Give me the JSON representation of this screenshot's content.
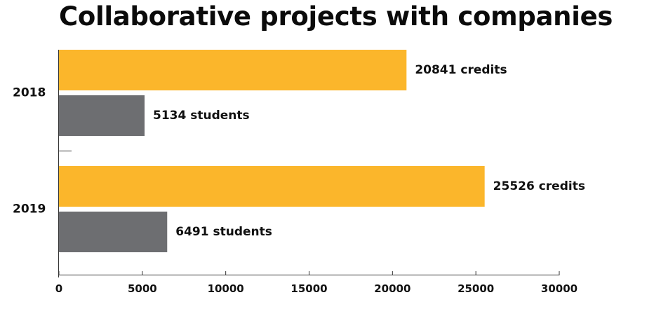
{
  "chart_data": {
    "type": "bar",
    "orientation": "horizontal",
    "title": "Collaborative projects with companies",
    "categories": [
      "2018",
      "2019"
    ],
    "series": [
      {
        "name": "credits",
        "color": "#FBB62B",
        "values": [
          20841,
          25526
        ],
        "labels": [
          "20841 credits",
          "25526 credits"
        ]
      },
      {
        "name": "students",
        "color": "#6D6E71",
        "values": [
          5134,
          6491
        ],
        "labels": [
          "5134 students",
          "6491 students"
        ]
      }
    ],
    "xlim": [
      0,
      30000
    ],
    "xticks": [
      0,
      5000,
      10000,
      15000,
      20000,
      25000,
      30000
    ],
    "xtick_labels": [
      "0",
      "5000",
      "10000",
      "15000",
      "20000",
      "25000",
      "30000"
    ],
    "xlabel": "",
    "ylabel": "",
    "grid": false,
    "legend": "none"
  }
}
